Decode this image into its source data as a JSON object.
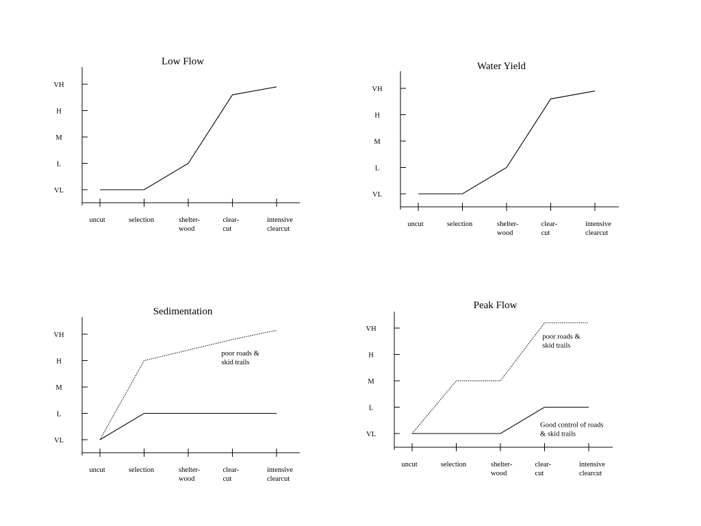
{
  "chart_data": [
    {
      "type": "line",
      "title": "Low Flow",
      "y_levels": [
        "VL",
        "L",
        "M",
        "H",
        "VH"
      ],
      "categories": [
        "uncut",
        "selection",
        "shelter-wood",
        "clear-cut",
        "intensive clearcut"
      ],
      "category_lines": [
        [
          "uncut"
        ],
        [
          "selection"
        ],
        [
          "shelter-",
          "wood"
        ],
        [
          "clear-",
          "cut"
        ],
        [
          "intensive",
          "clearcut"
        ]
      ],
      "series": [
        {
          "style": "solid",
          "values": [
            0,
            0,
            1,
            3.6,
            3.9
          ]
        }
      ],
      "annotations": []
    },
    {
      "type": "line",
      "title": "Water Yield",
      "y_levels": [
        "VL",
        "L",
        "M",
        "H",
        "VH"
      ],
      "categories": [
        "uncut",
        "selection",
        "shelter-wood",
        "clear-cut",
        "intensive clearcut"
      ],
      "category_lines": [
        [
          "uncut"
        ],
        [
          "selection"
        ],
        [
          "shelter-",
          "wood"
        ],
        [
          "clear-",
          "cut"
        ],
        [
          "intensive",
          "clearcut"
        ]
      ],
      "series": [
        {
          "style": "solid",
          "values": [
            0,
            0,
            1,
            3.6,
            3.9
          ]
        }
      ],
      "annotations": []
    },
    {
      "type": "line",
      "title": "Sedimentation",
      "y_levels": [
        "VL",
        "L",
        "M",
        "H",
        "VH"
      ],
      "categories": [
        "uncut",
        "selection",
        "shelter-wood",
        "clear-cut",
        "intensive clearcut"
      ],
      "category_lines": [
        [
          "uncut"
        ],
        [
          "selection"
        ],
        [
          "shelter-",
          "wood"
        ],
        [
          "clear-",
          "cut"
        ],
        [
          "intensive",
          "clearcut"
        ]
      ],
      "series": [
        {
          "style": "dotted",
          "values": [
            0,
            3,
            3.4,
            3.8,
            4.15
          ]
        },
        {
          "style": "solid",
          "values": [
            0,
            1,
            1,
            1,
            1
          ]
        }
      ],
      "annotations": [
        {
          "lines": [
            "poor roads &",
            "skid trails"
          ],
          "near_x": 2.75,
          "near_y": 3.2
        }
      ]
    },
    {
      "type": "line",
      "title": "Peak Flow",
      "y_levels": [
        "VL",
        "L",
        "M",
        "H",
        "VH"
      ],
      "categories": [
        "uncut",
        "selection",
        "shelter-wood",
        "clear-cut",
        "intensive clearcut"
      ],
      "category_lines": [
        [
          "uncut"
        ],
        [
          "selection"
        ],
        [
          "shelter-",
          "wood"
        ],
        [
          "clear-",
          "cut"
        ],
        [
          "intensive",
          "clearcut"
        ]
      ],
      "series": [
        {
          "style": "dotted",
          "values": [
            0,
            2,
            2,
            4.2,
            4.2
          ]
        },
        {
          "style": "solid",
          "values": [
            0,
            0,
            0,
            1,
            1
          ]
        }
      ],
      "annotations": [
        {
          "lines": [
            "poor roads &",
            "skid trails"
          ],
          "near_x": 2.95,
          "near_y": 3.6
        },
        {
          "lines": [
            "Good control of roads",
            "& skid trails"
          ],
          "near_x": 2.9,
          "near_y": 0.25
        }
      ]
    }
  ]
}
